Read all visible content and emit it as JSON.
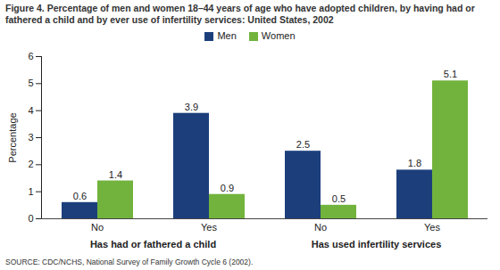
{
  "chart_data": {
    "type": "bar",
    "title": "Figure 4. Percentage of men and women 18–44 years of age who have adopted children, by having had or fathered a child and by ever use of infertility services: United States, 2002",
    "caption": "SOURCE: CDC/NCHS, National Survey of Family Growth Cycle 6 (2002).",
    "ylabel": "Percentage",
    "categories": [
      "No",
      "Yes",
      "No",
      "Yes"
    ],
    "groups": [
      "Has had or fathered a child",
      "Has had or fathered a child",
      "Has used infertility services",
      "Has used infertility services"
    ],
    "series": [
      {
        "name": "Men",
        "color": "#1c3f7c",
        "values": [
          0.6,
          3.9,
          2.5,
          1.8
        ]
      },
      {
        "name": "Women",
        "color": "#72b33d",
        "values": [
          1.4,
          0.9,
          0.5,
          5.1
        ]
      }
    ],
    "ylim": [
      0,
      6
    ],
    "yticks": [
      0,
      1,
      2,
      3,
      4,
      5,
      6
    ],
    "grid": false,
    "legend": "top",
    "data_labels": true
  }
}
